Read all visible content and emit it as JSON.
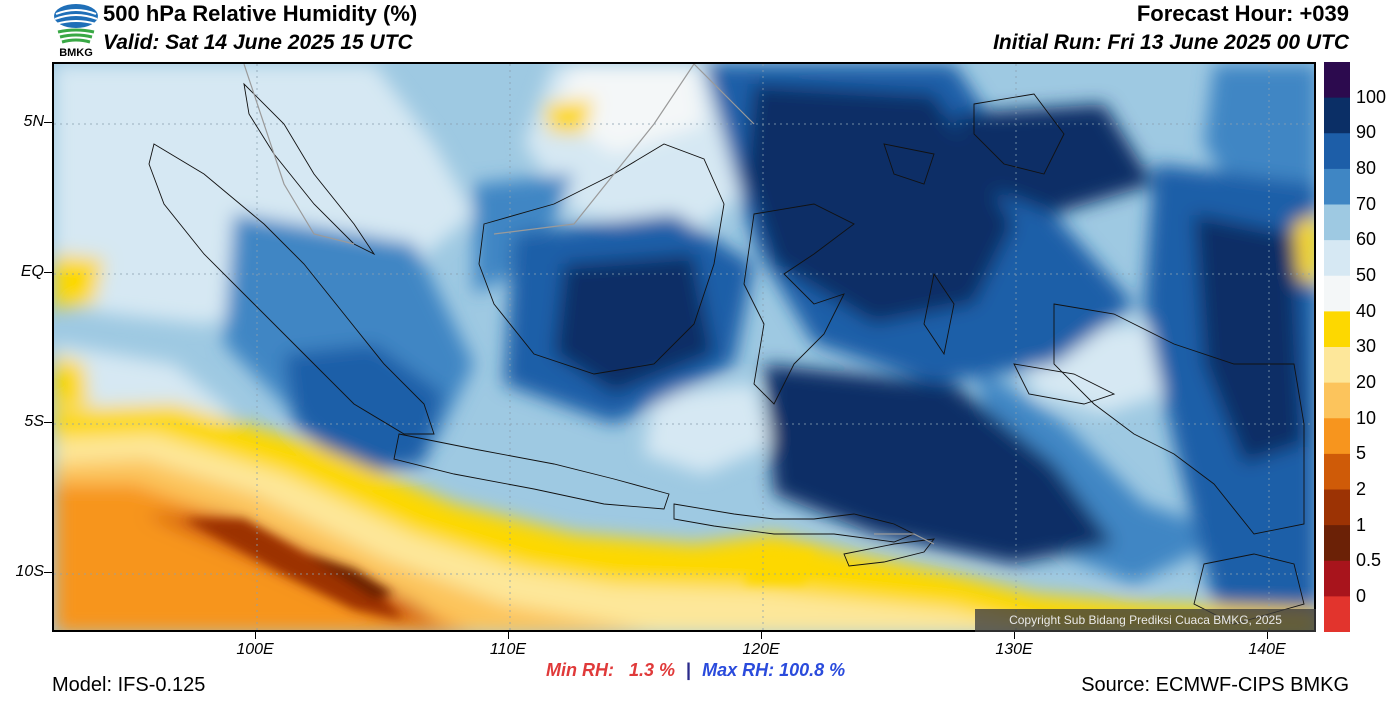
{
  "header": {
    "title": "500 hPa Relative Humidity (%)",
    "valid": "Valid: Sat 14 June 2025 15 UTC",
    "forecast_hour": "Forecast Hour: +039",
    "initial_run": "Initial Run: Fri 13 June 2025 00 UTC",
    "logo_text": "BMKG"
  },
  "map": {
    "lat_labels": [
      "5N",
      "EQ",
      "5S",
      "10S"
    ],
    "lon_labels": [
      "100E",
      "110E",
      "120E",
      "130E",
      "140E"
    ],
    "copyright": "Copyright Sub Bidang Prediksi Cuaca BMKG, 2025"
  },
  "colorbar": {
    "labels": [
      "100",
      "90",
      "80",
      "70",
      "60",
      "50",
      "40",
      "30",
      "20",
      "10",
      "5",
      "2",
      "1",
      "0.5",
      "0"
    ],
    "colors": [
      "#2c0a4e",
      "#0b2f66",
      "#1d5ea8",
      "#3f86c4",
      "#9ec9e2",
      "#d6e8f3",
      "#f4f7f8",
      "#fdd800",
      "#fde79a",
      "#fcc45c",
      "#f7951e",
      "#cf5b08",
      "#9c3304",
      "#6b2106",
      "#a8141c",
      "#e2342d"
    ]
  },
  "stats": {
    "min_label": "Min RH:",
    "min_value": "1.3 %",
    "separator": "|",
    "max_label": "Max RH:",
    "max_value": "100.8 %"
  },
  "footer": {
    "model": "Model: IFS-0.125",
    "source": "Source: ECMWF-CIPS BMKG"
  }
}
